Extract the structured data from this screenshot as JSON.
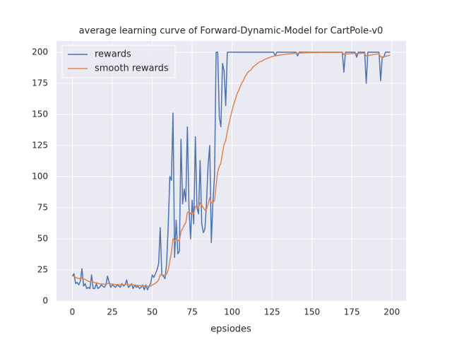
{
  "chart_data": {
    "type": "line",
    "title": "average learning curve of Forward-Dynamic-Model for CartPole-v0",
    "x_label": "epsiodes",
    "x": [
      0,
      1,
      2,
      3,
      4,
      5,
      6,
      7,
      8,
      9,
      10,
      11,
      12,
      13,
      14,
      15,
      16,
      17,
      18,
      19,
      20,
      21,
      22,
      23,
      24,
      25,
      26,
      27,
      28,
      29,
      30,
      31,
      32,
      33,
      34,
      35,
      36,
      37,
      38,
      39,
      40,
      41,
      42,
      43,
      44,
      45,
      46,
      47,
      48,
      49,
      50,
      51,
      52,
      53,
      54,
      55,
      56,
      57,
      58,
      59,
      60,
      61,
      62,
      63,
      64,
      65,
      66,
      67,
      68,
      69,
      70,
      71,
      72,
      73,
      74,
      75,
      76,
      77,
      78,
      79,
      80,
      81,
      82,
      83,
      84,
      85,
      86,
      87,
      88,
      89,
      90,
      91,
      92,
      93,
      94,
      95,
      96,
      97,
      98,
      99,
      100,
      101,
      102,
      103,
      104,
      105,
      106,
      107,
      108,
      109,
      110,
      111,
      112,
      113,
      114,
      115,
      116,
      117,
      118,
      119,
      120,
      121,
      122,
      123,
      124,
      125,
      126,
      127,
      128,
      129,
      130,
      131,
      132,
      133,
      134,
      135,
      136,
      137,
      138,
      139,
      140,
      141,
      142,
      143,
      144,
      145,
      146,
      147,
      148,
      149,
      150,
      151,
      152,
      153,
      154,
      155,
      156,
      157,
      158,
      159,
      160,
      161,
      162,
      163,
      164,
      165,
      166,
      167,
      168,
      169,
      170,
      171,
      172,
      173,
      174,
      175,
      176,
      177,
      178,
      179,
      180,
      181,
      182,
      183,
      184,
      185,
      186,
      187,
      188,
      189,
      190,
      191,
      192,
      193,
      194,
      195,
      196,
      197,
      198,
      199
    ],
    "series": [
      {
        "name": "rewards",
        "color": "#4c72b0",
        "values": [
          20,
          22,
          14,
          15,
          13,
          16,
          26,
          12,
          14,
          10,
          11,
          10,
          21,
          10,
          10,
          14,
          10,
          11,
          13,
          12,
          11,
          13,
          20,
          15,
          11,
          13,
          12,
          11,
          13,
          12,
          11,
          14,
          12,
          13,
          17,
          11,
          12,
          14,
          10,
          13,
          11,
          12,
          10,
          11,
          13,
          9,
          13,
          9,
          12,
          14,
          21,
          19,
          22,
          25,
          30,
          59,
          21,
          20,
          18,
          30,
          60,
          100,
          97,
          151,
          35,
          65,
          38,
          40,
          130,
          78,
          90,
          80,
          140,
          75,
          50,
          81,
          62,
          132,
          75,
          70,
          113,
          62,
          55,
          58,
          80,
          110,
          125,
          47,
          80,
          100,
          200,
          200,
          148,
          140,
          191,
          185,
          157,
          200,
          200,
          200,
          200,
          200,
          200,
          200,
          200,
          200,
          200,
          200,
          200,
          200,
          200,
          200,
          200,
          200,
          200,
          200,
          200,
          200,
          200,
          200,
          200,
          200,
          200,
          200,
          200,
          200,
          200,
          197,
          200,
          200,
          200,
          200,
          200,
          200,
          200,
          200,
          200,
          200,
          200,
          200,
          200,
          197,
          200,
          200,
          200,
          200,
          200,
          200,
          200,
          200,
          200,
          200,
          200,
          200,
          200,
          200,
          200,
          200,
          200,
          200,
          200,
          200,
          200,
          200,
          200,
          200,
          200,
          200,
          200,
          200,
          184,
          200,
          200,
          200,
          200,
          200,
          200,
          200,
          196,
          200,
          200,
          200,
          200,
          200,
          175,
          200,
          200,
          200,
          200,
          200,
          200,
          200,
          200,
          177,
          196,
          196,
          200,
          200,
          200,
          200
        ]
      },
      {
        "name": "smooth rewards",
        "color": "#dd8452",
        "values": [
          20,
          20,
          19,
          18.5,
          18,
          18,
          18.5,
          17.8,
          17.4,
          16.6,
          16,
          15.4,
          15.9,
          15.3,
          14.8,
          14.7,
          14.2,
          13.9,
          13.8,
          13.6,
          13.4,
          13.4,
          14,
          14.1,
          13.8,
          13.7,
          13.5,
          13.3,
          13.3,
          13.2,
          13,
          13.1,
          13,
          13,
          13.4,
          13.2,
          13.1,
          13.2,
          12.9,
          12.9,
          12.7,
          12.6,
          12.4,
          12.3,
          12.4,
          12,
          12.1,
          11.8,
          11.8,
          12,
          12.9,
          13.5,
          14.3,
          15.4,
          16.8,
          21,
          21,
          20.9,
          20.6,
          21.5,
          25,
          32,
          39,
          50,
          48,
          50,
          49,
          48,
          56,
          58,
          61,
          63,
          71,
          72,
          70,
          71,
          70,
          76,
          76,
          75,
          79,
          77,
          75,
          73,
          74,
          78,
          83,
          79,
          79,
          81,
          93,
          104,
          108,
          111,
          119,
          126,
          129,
          136,
          142,
          148,
          153,
          158,
          162,
          166,
          169,
          172,
          175,
          177,
          180,
          182,
          184,
          185,
          186,
          188,
          189,
          190,
          191,
          192,
          192.5,
          193,
          194,
          194.5,
          195,
          195.5,
          196,
          196.5,
          196.8,
          197,
          197.2,
          197.5,
          197.7,
          197.9,
          198,
          198.2,
          198.4,
          198.5,
          198.6,
          198.8,
          198.9,
          199,
          199.1,
          199.2,
          199.3,
          199.3,
          199.4,
          199.5,
          199.5,
          199.5,
          199.6,
          199.6,
          199.6,
          199.7,
          199.7,
          199.7,
          199.7,
          199.8,
          199.8,
          199.8,
          199.8,
          199.8,
          199.8,
          199.8,
          199.8,
          199.8,
          199.8,
          199.8,
          199.8,
          199.8,
          199.8,
          199.8,
          198.2,
          198.4,
          198.6,
          198.7,
          198.8,
          198.9,
          199,
          199.1,
          198.8,
          198.9,
          199,
          199.1,
          199.2,
          199.3,
          196.8,
          197.1,
          197.4,
          197.7,
          197.9,
          198.1,
          198.3,
          198.5,
          198.6,
          196.4,
          196.4,
          196.4,
          196.7,
          197,
          197.3,
          197.6
        ]
      }
    ],
    "xlim": [
      -9.95,
      208.95
    ],
    "ylim": [
      0,
      209
    ],
    "xticks": [
      0,
      25,
      50,
      75,
      100,
      125,
      150,
      175,
      200
    ],
    "yticks": [
      0,
      25,
      50,
      75,
      100,
      125,
      150,
      175,
      200
    ],
    "grid": true,
    "legend": "upper left"
  }
}
